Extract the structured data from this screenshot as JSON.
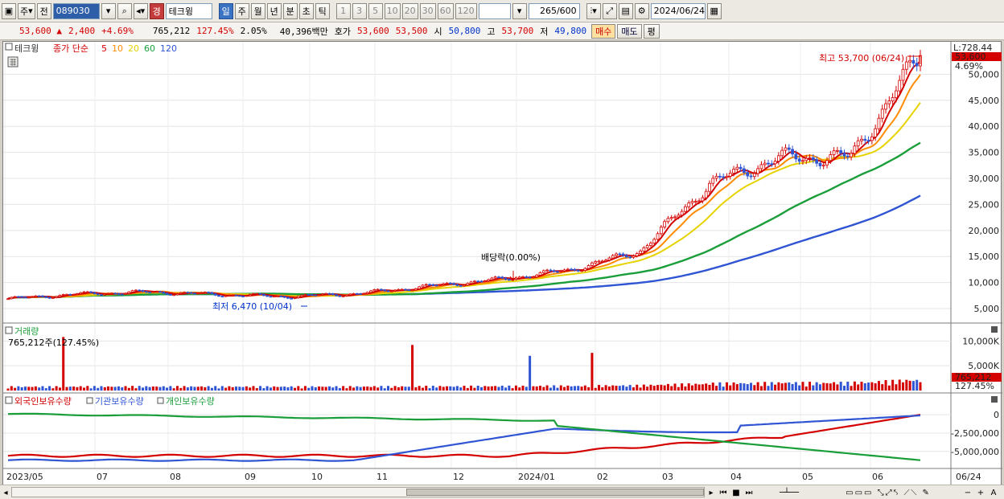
{
  "toolbar": {
    "market": "주",
    "prev": "전",
    "code": "089030",
    "badge": "경",
    "name": "테크윙",
    "periods": [
      "일",
      "주",
      "월",
      "년",
      "분",
      "초",
      "틱"
    ],
    "intervals": [
      "1",
      "3",
      "5",
      "10",
      "20",
      "30",
      "60",
      "120"
    ],
    "count": "265",
    "count_max": "/600",
    "date": "2024/06/24"
  },
  "quote": {
    "price": "53,600",
    "change": "2,400",
    "change_pct": "+4.69%",
    "volume": "765,212",
    "volume_ratio": "127.45%",
    "turnover_pct": "2.05%",
    "amount": "40,396백만",
    "hoga_label": "호가",
    "ask": "53,600",
    "bid": "53,500",
    "open_label": "시",
    "open": "50,800",
    "high_label": "고",
    "high": "53,700",
    "low_label": "저",
    "low": "49,800",
    "buy": "매수",
    "sell": "매도",
    "avg": "평"
  },
  "price_panel": {
    "legend_name": "테크윙",
    "legend_ma": "종가 단순",
    "ma_periods": [
      "5",
      "10",
      "20",
      "60",
      "120"
    ],
    "ma_colors": [
      "#d40000",
      "#ff8c00",
      "#e6d300",
      "#1a9e3a",
      "#2f55d4"
    ],
    "high_annot": "최고 53,700 (06/24)",
    "low_annot": "최저 6,470 (10/04)",
    "dividend_annot": "배당락(0.00%)",
    "axis_top": "L:728.44",
    "last_price": "53,600",
    "last_pct": "4.69%",
    "y_ticks": [
      "50,000",
      "45,000",
      "40,000",
      "35,000",
      "30,000",
      "25,000",
      "20,000",
      "15,000",
      "10,000",
      "5,000"
    ]
  },
  "volume_panel": {
    "title": "거래량",
    "value": "765,212주(127.45%)",
    "y_ticks": [
      "10,000K",
      "5,000K"
    ],
    "last_value": "765,212",
    "last_pct": "127.45%"
  },
  "holdings_panel": {
    "legend": [
      "외국인보유수량",
      "기관보유수량",
      "개인보유수량"
    ],
    "colors": [
      "#d40000",
      "#2f55d4",
      "#1a9e3a"
    ],
    "y_ticks": [
      "0",
      "-2,500,000",
      "-5,000,000"
    ]
  },
  "x_axis": {
    "labels": [
      "2023/05",
      "07",
      "08",
      "09",
      "10",
      "11",
      "12",
      "2024/01",
      "02",
      "03",
      "04",
      "05",
      "06"
    ],
    "last_date": "06/24"
  },
  "chart_data": {
    "type": "candlestick",
    "unit": "KRW",
    "monthly": [
      {
        "month": "2023/05",
        "close": 6900
      },
      {
        "month": "2023/06",
        "close": 7800
      },
      {
        "month": "2023/07",
        "close": 8200
      },
      {
        "month": "2023/08",
        "close": 7700
      },
      {
        "month": "2023/09",
        "close": 7300
      },
      {
        "month": "2023/10",
        "close": 7900
      },
      {
        "month": "2023/11",
        "close": 9300
      },
      {
        "month": "2023/12",
        "close": 10600
      },
      {
        "month": "2024/01",
        "close": 12400
      },
      {
        "month": "2024/02",
        "close": 16000
      },
      {
        "month": "2024/03",
        "close": 29000
      },
      {
        "month": "2024/04",
        "close": 34000
      },
      {
        "month": "2024/05",
        "close": 34000
      },
      {
        "month": "2024/06",
        "close": 53600
      }
    ],
    "ylim": [
      3000,
      55000
    ],
    "series": [
      {
        "name": "5",
        "values_end": 50500
      },
      {
        "name": "10",
        "values_end": 47500
      },
      {
        "name": "20",
        "values_end": 45000
      },
      {
        "name": "60",
        "values_end": 38500
      },
      {
        "name": "120",
        "values_end": 28500
      }
    ]
  }
}
